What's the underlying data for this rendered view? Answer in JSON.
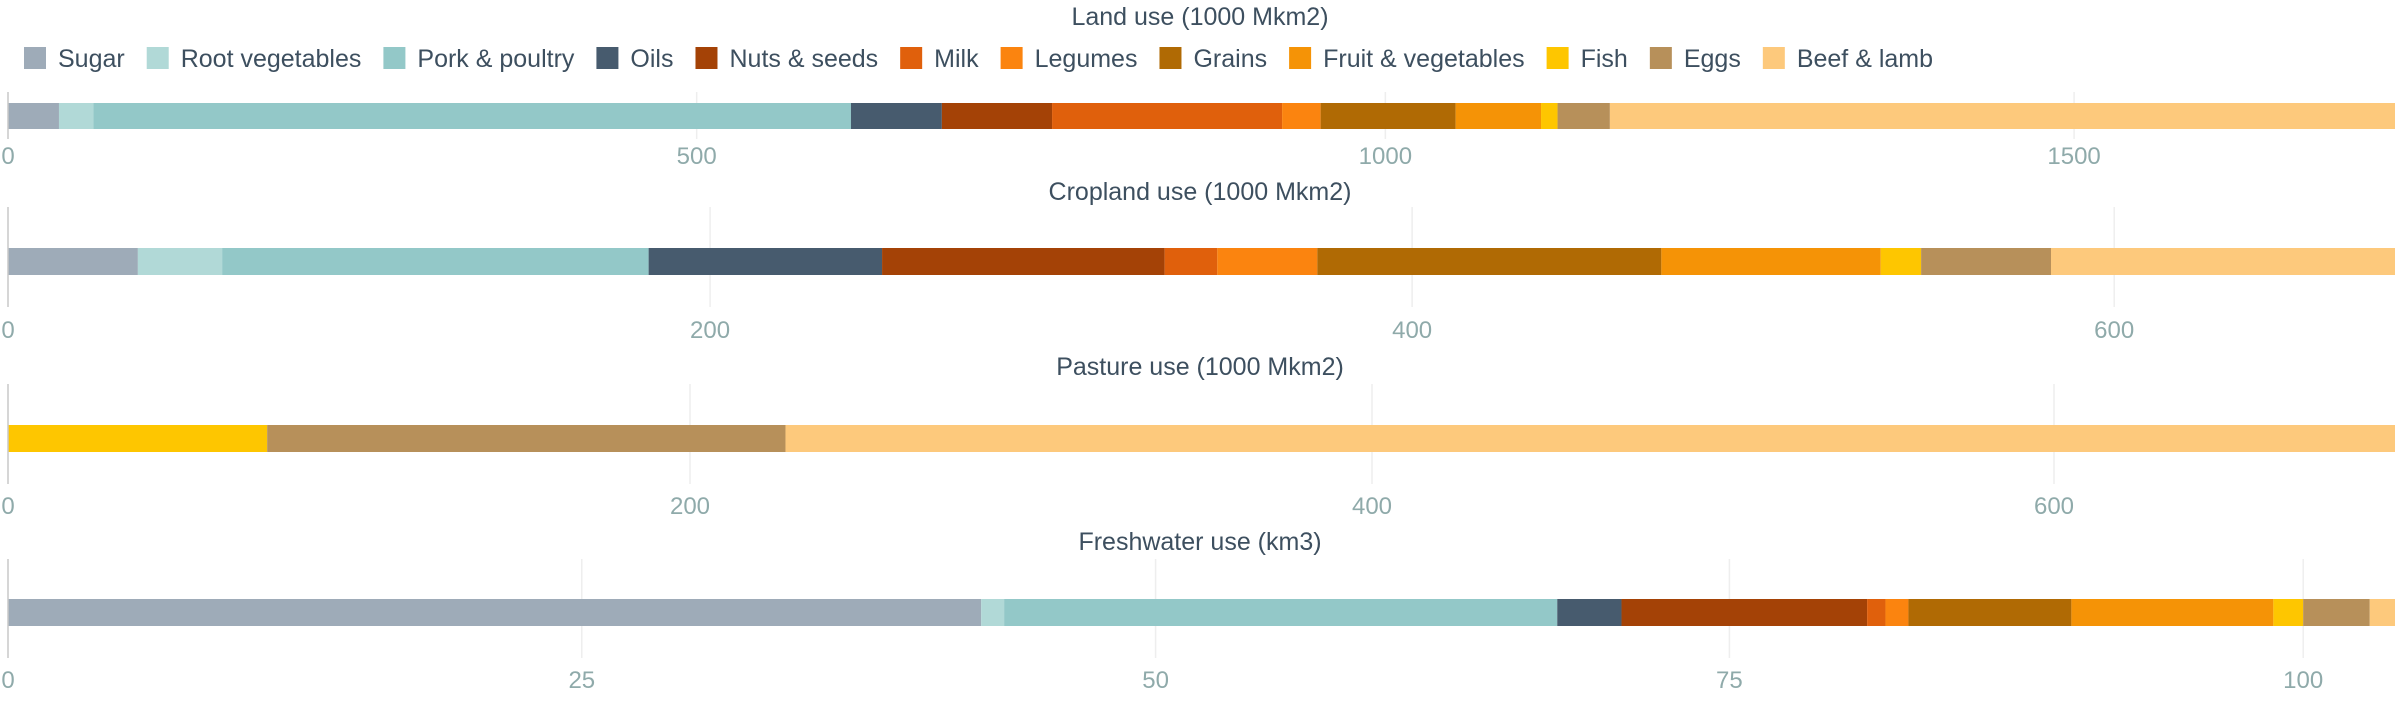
{
  "categories": [
    {
      "name": "Sugar",
      "color": "#9eabb8"
    },
    {
      "name": "Root vegetables",
      "color": "#b1d9d7"
    },
    {
      "name": "Pork & poultry",
      "color": "#93c8c8"
    },
    {
      "name": "Oils",
      "color": "#475b6e"
    },
    {
      "name": "Nuts & seeds",
      "color": "#a44206"
    },
    {
      "name": "Milk",
      "color": "#e0600c"
    },
    {
      "name": "Legumes",
      "color": "#fb840f"
    },
    {
      "name": "Grains",
      "color": "#b06a04"
    },
    {
      "name": "Fruit & vegetables",
      "color": "#f59306"
    },
    {
      "name": "Fish",
      "color": "#fec600"
    },
    {
      "name": "Eggs",
      "color": "#b7905a"
    },
    {
      "name": "Beef & lamb",
      "color": "#fdc97c"
    }
  ],
  "chart_data": [
    {
      "type": "bar",
      "orientation": "horizontal",
      "stacked": true,
      "title": "Land use (1000 Mkm2)",
      "xlim": [
        0,
        1733
      ],
      "ticks": [
        0,
        500,
        1000,
        1500
      ],
      "series": [
        {
          "name": "Sugar",
          "values": [
            37
          ]
        },
        {
          "name": "Root vegetables",
          "values": [
            25
          ]
        },
        {
          "name": "Pork & poultry",
          "values": [
            550
          ]
        },
        {
          "name": "Oils",
          "values": [
            66
          ]
        },
        {
          "name": "Nuts & seeds",
          "values": [
            80
          ]
        },
        {
          "name": "Milk",
          "values": [
            167
          ]
        },
        {
          "name": "Legumes",
          "values": [
            28
          ]
        },
        {
          "name": "Grains",
          "values": [
            98
          ]
        },
        {
          "name": "Fruit & vegetables",
          "values": [
            62
          ]
        },
        {
          "name": "Fish",
          "values": [
            12
          ]
        },
        {
          "name": "Eggs",
          "values": [
            38
          ]
        },
        {
          "name": "Beef & lamb",
          "values": [
            570
          ]
        }
      ]
    },
    {
      "type": "bar",
      "orientation": "horizontal",
      "stacked": true,
      "title": "Cropland use (1000 Mkm2)",
      "xlim": [
        0,
        680
      ],
      "ticks": [
        0,
        200,
        400,
        600
      ],
      "series": [
        {
          "name": "Sugar",
          "values": [
            37
          ]
        },
        {
          "name": "Root vegetables",
          "values": [
            24
          ]
        },
        {
          "name": "Pork & poultry",
          "values": [
            121.5
          ]
        },
        {
          "name": "Oils",
          "values": [
            66.5
          ]
        },
        {
          "name": "Nuts & seeds",
          "values": [
            80.5
          ]
        },
        {
          "name": "Milk",
          "values": [
            15
          ]
        },
        {
          "name": "Legumes",
          "values": [
            28.5
          ]
        },
        {
          "name": "Grains",
          "values": [
            98
          ]
        },
        {
          "name": "Fruit & vegetables",
          "values": [
            62.5
          ]
        },
        {
          "name": "Fish",
          "values": [
            11.5
          ]
        },
        {
          "name": "Eggs",
          "values": [
            37
          ]
        },
        {
          "name": "Beef & lamb",
          "values": [
            98
          ]
        }
      ]
    },
    {
      "type": "bar",
      "orientation": "horizontal",
      "stacked": true,
      "title": "Pasture use (1000 Mkm2)",
      "xlim": [
        0,
        700
      ],
      "ticks": [
        0,
        200,
        400,
        600
      ],
      "series": [
        {
          "name": "Fish",
          "values": [
            76
          ]
        },
        {
          "name": "Eggs",
          "values": [
            152
          ]
        },
        {
          "name": "Beef & lamb",
          "values": [
            472
          ]
        }
      ]
    },
    {
      "type": "bar",
      "orientation": "horizontal",
      "stacked": true,
      "title": "Freshwater use (km3)",
      "xlim": [
        0,
        104
      ],
      "ticks": [
        0,
        25,
        50,
        75,
        100
      ],
      "series": [
        {
          "name": "Sugar",
          "values": [
            42.4
          ]
        },
        {
          "name": "Root vegetables",
          "values": [
            1
          ]
        },
        {
          "name": "Pork & poultry",
          "values": [
            24.1
          ]
        },
        {
          "name": "Oils",
          "values": [
            2.8
          ]
        },
        {
          "name": "Nuts & seeds",
          "values": [
            10.7
          ]
        },
        {
          "name": "Milk",
          "values": [
            0.8
          ]
        },
        {
          "name": "Legumes",
          "values": [
            1
          ]
        },
        {
          "name": "Grains",
          "values": [
            7.1
          ]
        },
        {
          "name": "Fruit & vegetables",
          "values": [
            8.8
          ]
        },
        {
          "name": "Fish",
          "values": [
            1.3
          ]
        },
        {
          "name": "Eggs",
          "values": [
            2.9
          ]
        },
        {
          "name": "Beef & lamb",
          "values": [
            1.1
          ]
        }
      ]
    }
  ]
}
